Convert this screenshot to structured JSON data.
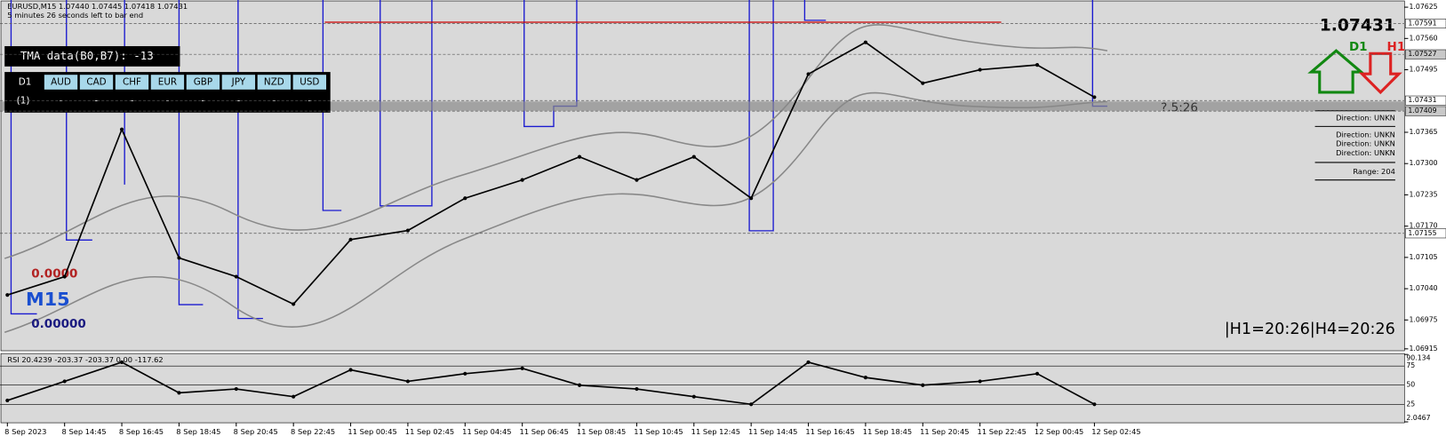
{
  "header": {
    "symbol_line": "EURUSD,M15  1.07440 1.07445 1.07418 1.07431",
    "countdown": "5 minutes 26 seconds left to bar end"
  },
  "tma_panel": {
    "title": "TMA data(B0,B7): -13",
    "timeframe": "D1",
    "row_label": "(1)",
    "currencies": [
      "AUD",
      "CAD",
      "CHF",
      "EUR",
      "GBP",
      "JPY",
      "NZD",
      "USD"
    ],
    "cells": [
      "-",
      "-",
      "-",
      "-",
      "-",
      "-",
      "-",
      "-"
    ]
  },
  "overlay_labels": {
    "top": "0.0000",
    "timeframe": "M15",
    "bottom": "0.00000"
  },
  "info_panel": {
    "price": "1.07431",
    "d1": "D1",
    "h1": "H1",
    "directions": [
      "Direction: UNKN",
      "Direction: UNKN",
      "Direction: UNKN",
      "Direction: UNKN"
    ],
    "range": "Range: 204",
    "timer": "?.5:26",
    "timer_line": "|H1=20:26|H4=20:26"
  },
  "chart_data": {
    "type": "line",
    "categories": [
      "8 Sep 2023",
      "8 Sep 14:45",
      "8 Sep 16:45",
      "8 Sep 18:45",
      "8 Sep 20:45",
      "8 Sep 22:45",
      "11 Sep 00:45",
      "11 Sep 02:45",
      "11 Sep 04:45",
      "11 Sep 06:45",
      "11 Sep 08:45",
      "11 Sep 10:45",
      "11 Sep 12:45",
      "11 Sep 14:45",
      "11 Sep 16:45",
      "11 Sep 18:45",
      "11 Sep 20:45",
      "11 Sep 22:45",
      "12 Sep 00:45",
      "12 Sep 02:45"
    ],
    "values": [
      1.07027,
      1.07065,
      1.07371,
      1.07104,
      1.07065,
      1.07008,
      1.07142,
      1.07161,
      1.07228,
      1.07266,
      1.07314,
      1.07266,
      1.07314,
      1.07228,
      1.07486,
      1.07552,
      1.07467,
      1.07495,
      1.07505,
      1.07438
    ],
    "color": "#000000",
    "ylim": [
      1.06911,
      1.07638
    ],
    "yticks": [
      1.07625,
      {
        "value": 1.0756,
        "label": "1.07560"
      },
      1.07495,
      1.07365,
      {
        "value": 1.073,
        "label": "1.07300"
      },
      1.07235,
      {
        "value": 1.0717,
        "label": "1.07170"
      },
      1.07105,
      {
        "value": 1.0704,
        "label": "1.07040"
      },
      1.06975,
      1.06915
    ],
    "price_levels": [
      1.07591,
      1.07527,
      1.07431,
      1.07409,
      1.07155
    ],
    "rsi": {
      "label": "RSI 20.4239  -203.37 -203.37 0.00 -117.62",
      "values": [
        30,
        55,
        80,
        40,
        45,
        35,
        70,
        55,
        65,
        72,
        50,
        45,
        35,
        25,
        80,
        60,
        50,
        55,
        65,
        25
      ],
      "color": "#000000",
      "ylim": [
        2.0467,
        90.134
      ],
      "yticks": [
        90.134,
        75,
        50,
        25,
        2.0467
      ]
    }
  }
}
